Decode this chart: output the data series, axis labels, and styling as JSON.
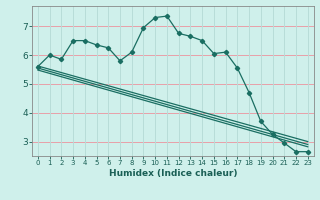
{
  "xlabel": "Humidex (Indice chaleur)",
  "background_color": "#cff0eb",
  "grid_color_h": "#e8a0a8",
  "grid_color_v": "#b8ddd8",
  "line_color": "#1a6e62",
  "xlim": [
    -0.5,
    23.5
  ],
  "ylim": [
    2.5,
    7.7
  ],
  "yticks": [
    3,
    4,
    5,
    6,
    7
  ],
  "xticks": [
    0,
    1,
    2,
    3,
    4,
    5,
    6,
    7,
    8,
    9,
    10,
    11,
    12,
    13,
    14,
    15,
    16,
    17,
    18,
    19,
    20,
    21,
    22,
    23
  ],
  "line1_x": [
    0,
    1,
    2,
    3,
    4,
    5,
    6,
    7,
    8,
    9,
    10,
    11,
    12,
    13,
    14,
    15,
    16,
    17,
    18,
    19,
    20,
    21,
    22,
    23
  ],
  "line1_y": [
    5.6,
    6.0,
    5.85,
    6.5,
    6.5,
    6.35,
    6.25,
    5.8,
    6.1,
    6.95,
    7.3,
    7.35,
    6.75,
    6.65,
    6.5,
    6.05,
    6.1,
    5.55,
    4.7,
    3.7,
    3.25,
    2.95,
    2.65,
    2.65
  ],
  "line2_x": [
    0,
    23
  ],
  "line2_y": [
    5.55,
    2.9
  ],
  "line3_x": [
    0,
    23
  ],
  "line3_y": [
    5.62,
    3.0
  ],
  "line4_x": [
    0,
    23
  ],
  "line4_y": [
    5.48,
    2.82
  ]
}
